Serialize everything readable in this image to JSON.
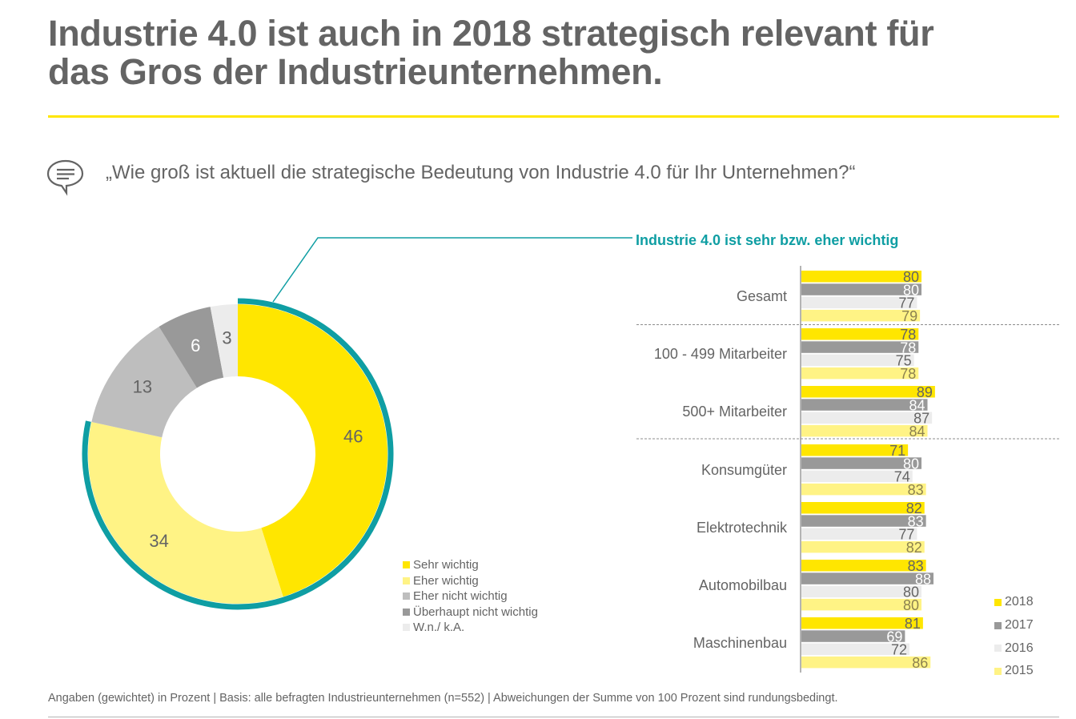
{
  "header": {
    "title_lines": [
      "Industrie 4.0 ist auch in 2018 strategisch relevant für",
      "das Gros der Industrieunternehmen."
    ],
    "accent_color": "#ffe600"
  },
  "question": {
    "icon": "speech-bubble-icon",
    "text": "„Wie groß ist aktuell die strategische Bedeutung von Industrie 4.0 für Ihr Unternehmen?“"
  },
  "footnote": "Angaben (gewichtet) in Prozent | Basis: alle befragten Industrieunternehmen (n=552) | Abweichungen der Summe von 100 Prozent sind rundungsbedingt.",
  "chart_data": [
    {
      "type": "pie",
      "variant": "donut",
      "title": "",
      "categories": [
        "Sehr wichtig",
        "Eher wichtig",
        "Eher nicht wichtig",
        "Überhaupt nicht wichtig",
        "W.n./ k.A."
      ],
      "values": [
        46,
        34,
        13,
        6,
        3
      ],
      "colors": [
        "#ffe600",
        "#fff385",
        "#bebebe",
        "#999999",
        "#ececec"
      ],
      "label_colors": [
        "#646464",
        "#646464",
        "#646464",
        "#ffffff",
        "#646464"
      ],
      "start": "top-clockwise",
      "highlight": {
        "categories": [
          "Sehr wichtig",
          "Eher wichtig"
        ],
        "color": "#0f9ea3",
        "callout": "Industrie 4.0 ist sehr bzw. eher wichtig"
      },
      "legend": {
        "position": "bottom-right"
      }
    },
    {
      "type": "bar",
      "orientation": "horizontal",
      "title": "Industrie 4.0 ist sehr bzw. eher wichtig",
      "title_color": "#0f9ea3",
      "categories": [
        "Gesamt",
        "100 - 499 Mitarbeiter",
        "500+ Mitarbeiter",
        "Konsumgüter",
        "Elektrotechnik",
        "Automobilbau",
        "Maschinenbau"
      ],
      "group_separators_after": [
        "Gesamt",
        "500+ Mitarbeiter"
      ],
      "series": [
        {
          "name": "2018",
          "color": "#ffe600",
          "label_color": "#646464",
          "values": [
            80,
            78,
            89,
            71,
            82,
            83,
            81
          ]
        },
        {
          "name": "2017",
          "color": "#999999",
          "label_color": "#ffffff",
          "values": [
            80,
            78,
            84,
            80,
            83,
            88,
            69
          ]
        },
        {
          "name": "2016",
          "color": "#ececec",
          "label_color": "#646464",
          "values": [
            77,
            75,
            87,
            74,
            77,
            80,
            72
          ]
        },
        {
          "name": "2015",
          "color": "#fff385",
          "label_color": "#8c8250",
          "values": [
            79,
            78,
            84,
            83,
            82,
            80,
            86
          ]
        }
      ],
      "xlim": [
        0,
        100
      ],
      "grid": false,
      "legend": {
        "position": "bottom-right"
      }
    }
  ]
}
